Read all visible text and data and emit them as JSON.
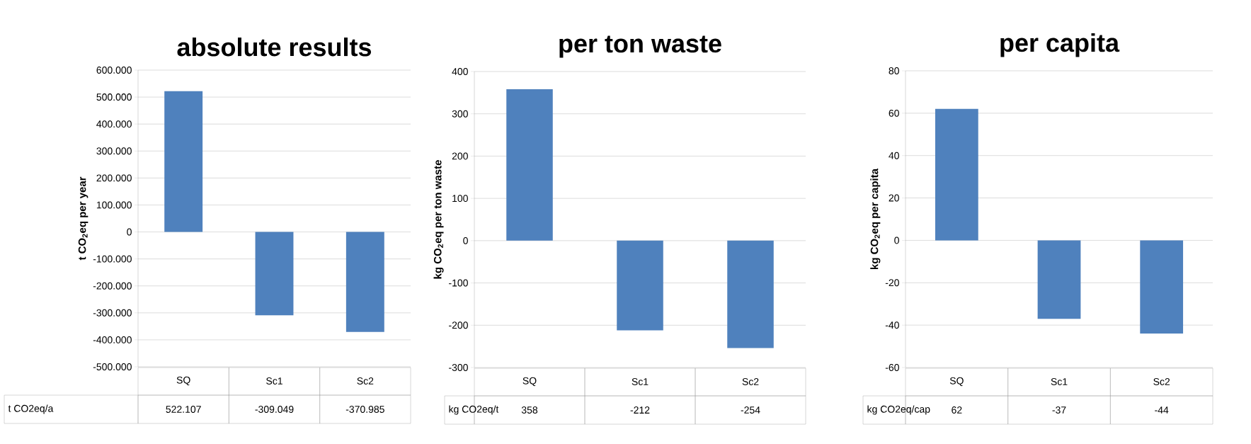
{
  "chart_data": [
    {
      "type": "bar",
      "title": "absolute results",
      "ylabel": "t CO$_{2}$eq per year",
      "categories": [
        "SQ",
        "Sc1",
        "Sc2"
      ],
      "series": [
        {
          "name": "t CO2eq/a",
          "color": "#4f81bd",
          "values": [
            522107,
            -309049,
            -370985
          ],
          "value_labels": [
            "522.107",
            "-309.049",
            "-370.985"
          ]
        }
      ],
      "ylim": [
        -500000,
        600000
      ],
      "yticks": [
        {
          "value": -500000,
          "label": "-500.000"
        },
        {
          "value": -400000,
          "label": "-400.000"
        },
        {
          "value": -300000,
          "label": "-300.000"
        },
        {
          "value": -200000,
          "label": "-200.000"
        },
        {
          "value": -100000,
          "label": "-100.000"
        },
        0,
        {
          "value": 100000,
          "label": "100.000"
        },
        {
          "value": 200000,
          "label": "200.000"
        },
        {
          "value": 300000,
          "label": "300.000"
        },
        {
          "value": 400000,
          "label": "400.000"
        },
        {
          "value": 500000,
          "label": "500.000"
        },
        {
          "value": 600000,
          "label": "600.000"
        }
      ],
      "grid": "y"
    },
    {
      "type": "bar",
      "title": "per ton waste",
      "ylabel": "kg CO$_{2}$eq per ton waste",
      "categories": [
        "SQ",
        "Sc1",
        "Sc2"
      ],
      "series": [
        {
          "name": "kg CO2eq/t",
          "color": "#4f81bd",
          "values": [
            358,
            -212,
            -254
          ],
          "value_labels": [
            "358",
            "-212",
            "-254"
          ]
        }
      ],
      "ylim": [
        -300,
        400
      ],
      "yticks": [
        -300,
        -200,
        -100,
        0,
        100,
        200,
        300,
        400
      ],
      "grid": "y"
    },
    {
      "type": "bar",
      "title": "per capita",
      "ylabel": "kg CO$_{2}$eq per capita",
      "categories": [
        "SQ",
        "Sc1",
        "Sc2"
      ],
      "series": [
        {
          "name": "kg CO2eq/cap",
          "color": "#4f81bd",
          "values": [
            62,
            -37,
            -44
          ],
          "value_labels": [
            "62",
            "-37",
            "-44"
          ]
        }
      ],
      "ylim": [
        -60,
        80
      ],
      "yticks": [
        -60,
        -40,
        -20,
        0,
        20,
        40,
        60,
        80
      ],
      "grid": "y"
    }
  ]
}
